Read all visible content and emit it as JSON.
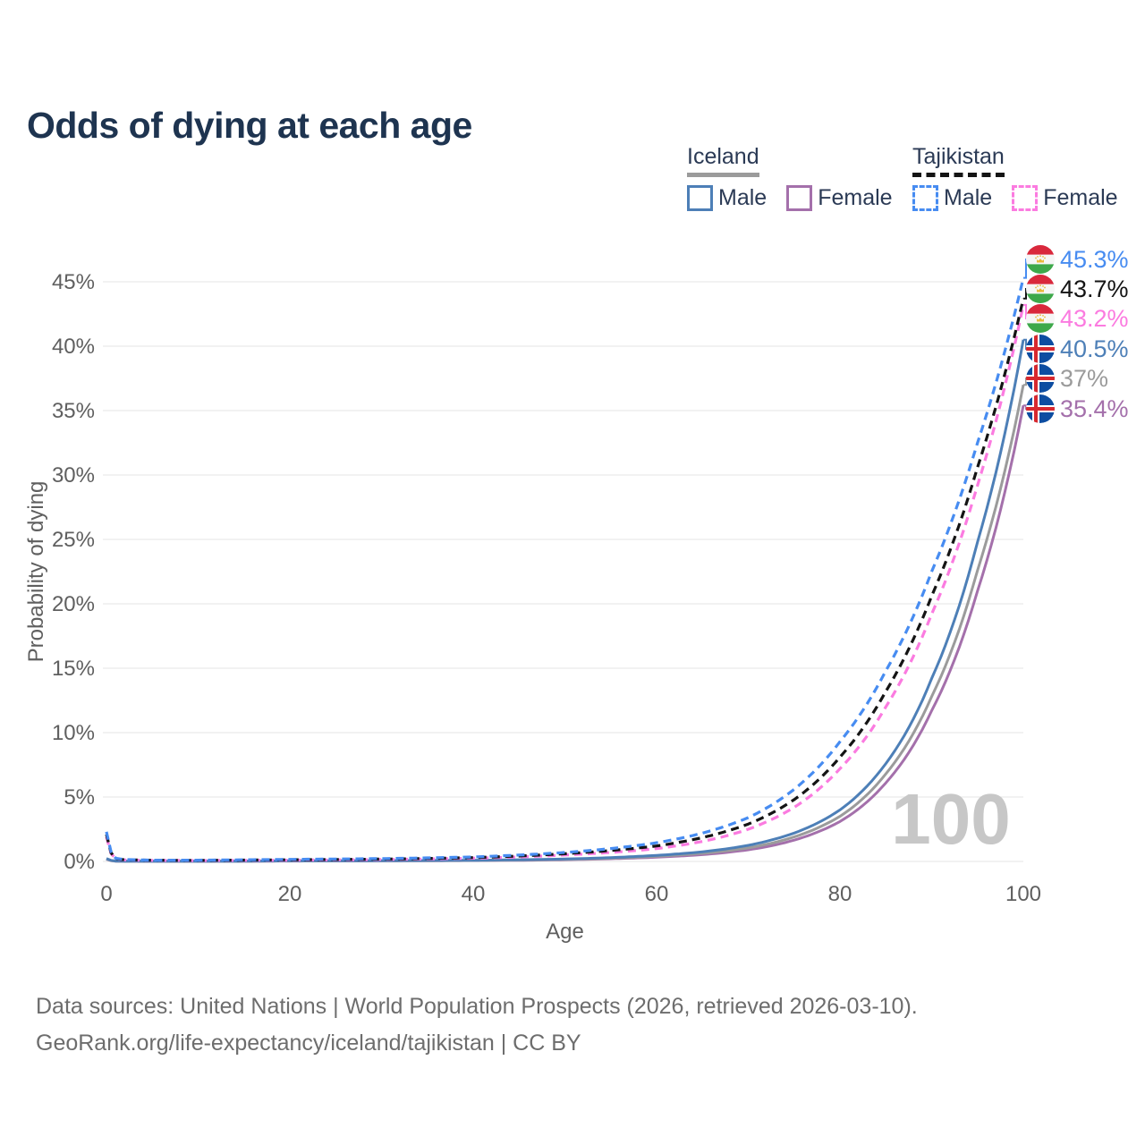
{
  "title": "Odds of dying at each age",
  "watermark": "100",
  "legend": {
    "iceland": {
      "label": "Iceland",
      "male": "Male",
      "female": "Female"
    },
    "tajikistan": {
      "label": "Tajikistan",
      "male": "Male",
      "female": "Female"
    }
  },
  "footer": {
    "line1": "Data sources: United Nations | World Population Prospects (2026, retrieved 2026-03-10).",
    "line2": "GeoRank.org/life-expectancy/iceland/tajikistan | CC BY"
  },
  "colors": {
    "title_text": "#1e3450",
    "legend_text": "#2b3a55",
    "gridline": "#ededed",
    "tick_text": "#5f5f5f",
    "watermark": "#c7c7c7",
    "footer_text": "#6d6d6d",
    "iceland_male": "#4d7fb7",
    "iceland_female": "#a470ab",
    "iceland_total": "#9b9b9b",
    "tajikistan_male": "#478cf1",
    "tajikistan_female": "#fb7be0",
    "tajikistan_total": "#141414",
    "flag_tajikistan_red": "#d9283c",
    "flag_tajikistan_green": "#3da84a",
    "flag_tajikistan_gold": "#e8b83a",
    "flag_iceland_blue": "#0d4da1",
    "flag_iceland_red": "#d7282f"
  },
  "chart_data": {
    "type": "line",
    "title": "Odds of dying at each age",
    "xlabel": "Age",
    "ylabel": "Probability of dying",
    "xlim": [
      0,
      100
    ],
    "ylim_percent": [
      0,
      47
    ],
    "grid": "horizontal",
    "legend_position": "top-right",
    "x_ticks": [
      {
        "value": 0,
        "label": "0"
      },
      {
        "value": 20,
        "label": "20"
      },
      {
        "value": 40,
        "label": "40"
      },
      {
        "value": 60,
        "label": "60"
      },
      {
        "value": 80,
        "label": "80"
      },
      {
        "value": 100,
        "label": "100"
      }
    ],
    "y_ticks": [
      {
        "value": 0,
        "label": "0%"
      },
      {
        "value": 5,
        "label": "5%"
      },
      {
        "value": 10,
        "label": "10%"
      },
      {
        "value": 15,
        "label": "15%"
      },
      {
        "value": 20,
        "label": "20%"
      },
      {
        "value": 25,
        "label": "25%"
      },
      {
        "value": 30,
        "label": "30%"
      },
      {
        "value": 35,
        "label": "35%"
      },
      {
        "value": 40,
        "label": "40%"
      },
      {
        "value": 45,
        "label": "45%"
      }
    ],
    "control_ages": [
      0,
      1,
      2,
      5,
      10,
      20,
      30,
      40,
      45,
      50,
      55,
      60,
      65,
      70,
      75,
      80,
      85,
      90,
      95,
      100
    ],
    "series": [
      {
        "id": "tajikistan-male",
        "name": "Tajikistan Male",
        "country": "Tajikistan",
        "sex": "male",
        "style": "dashed",
        "color": "#478cf1",
        "flag": "tajikistan",
        "end_label": "45.3%",
        "end_value": 45.3,
        "values": [
          2.3,
          0.25,
          0.15,
          0.1,
          0.1,
          0.16,
          0.22,
          0.35,
          0.5,
          0.7,
          1.0,
          1.45,
          2.2,
          3.4,
          5.6,
          9.3,
          14.8,
          22.5,
          32.5,
          45.3
        ]
      },
      {
        "id": "tajikistan-total",
        "name": "Tajikistan Both sexes",
        "country": "Tajikistan",
        "sex": "both",
        "style": "dashed",
        "color": "#141414",
        "flag": "tajikistan",
        "end_label": "43.7%",
        "end_value": 43.7,
        "values": [
          2.1,
          0.22,
          0.13,
          0.09,
          0.08,
          0.13,
          0.18,
          0.3,
          0.42,
          0.6,
          0.85,
          1.2,
          1.85,
          2.9,
          4.8,
          8.1,
          13.2,
          20.6,
          30.6,
          43.7
        ]
      },
      {
        "id": "tajikistan-female",
        "name": "Tajikistan Female",
        "country": "Tajikistan",
        "sex": "female",
        "style": "dashed",
        "color": "#fb7be0",
        "flag": "tajikistan",
        "end_label": "43.2%",
        "end_value": 43.2,
        "values": [
          1.9,
          0.2,
          0.12,
          0.08,
          0.07,
          0.1,
          0.15,
          0.25,
          0.35,
          0.5,
          0.7,
          1.0,
          1.55,
          2.5,
          4.2,
          7.2,
          12.0,
          19.2,
          29.2,
          43.2
        ]
      },
      {
        "id": "iceland-male",
        "name": "Iceland Male",
        "country": "Iceland",
        "sex": "male",
        "style": "solid",
        "color": "#4d7fb7",
        "flag": "iceland",
        "end_label": "40.5%",
        "end_value": 40.5,
        "values": [
          0.22,
          0.03,
          0.02,
          0.012,
          0.012,
          0.05,
          0.06,
          0.09,
          0.13,
          0.19,
          0.3,
          0.47,
          0.75,
          1.25,
          2.2,
          4.0,
          7.6,
          14.2,
          24.8,
          40.5
        ]
      },
      {
        "id": "iceland-total",
        "name": "Iceland Both sexes",
        "country": "Iceland",
        "sex": "both",
        "style": "solid",
        "color": "#9b9b9b",
        "flag": "iceland",
        "end_label": "37%",
        "end_value": 37.0,
        "values": [
          0.19,
          0.025,
          0.016,
          0.01,
          0.01,
          0.04,
          0.05,
          0.08,
          0.11,
          0.16,
          0.25,
          0.4,
          0.63,
          1.05,
          1.9,
          3.5,
          6.8,
          12.8,
          22.6,
          37.0
        ]
      },
      {
        "id": "iceland-female",
        "name": "Iceland Female",
        "country": "Iceland",
        "sex": "female",
        "style": "solid",
        "color": "#a470ab",
        "flag": "iceland",
        "end_label": "35.4%",
        "end_value": 35.4,
        "values": [
          0.17,
          0.022,
          0.013,
          0.008,
          0.008,
          0.03,
          0.04,
          0.07,
          0.09,
          0.13,
          0.21,
          0.33,
          0.53,
          0.9,
          1.65,
          3.1,
          6.1,
          11.7,
          21.0,
          35.4
        ]
      }
    ]
  }
}
